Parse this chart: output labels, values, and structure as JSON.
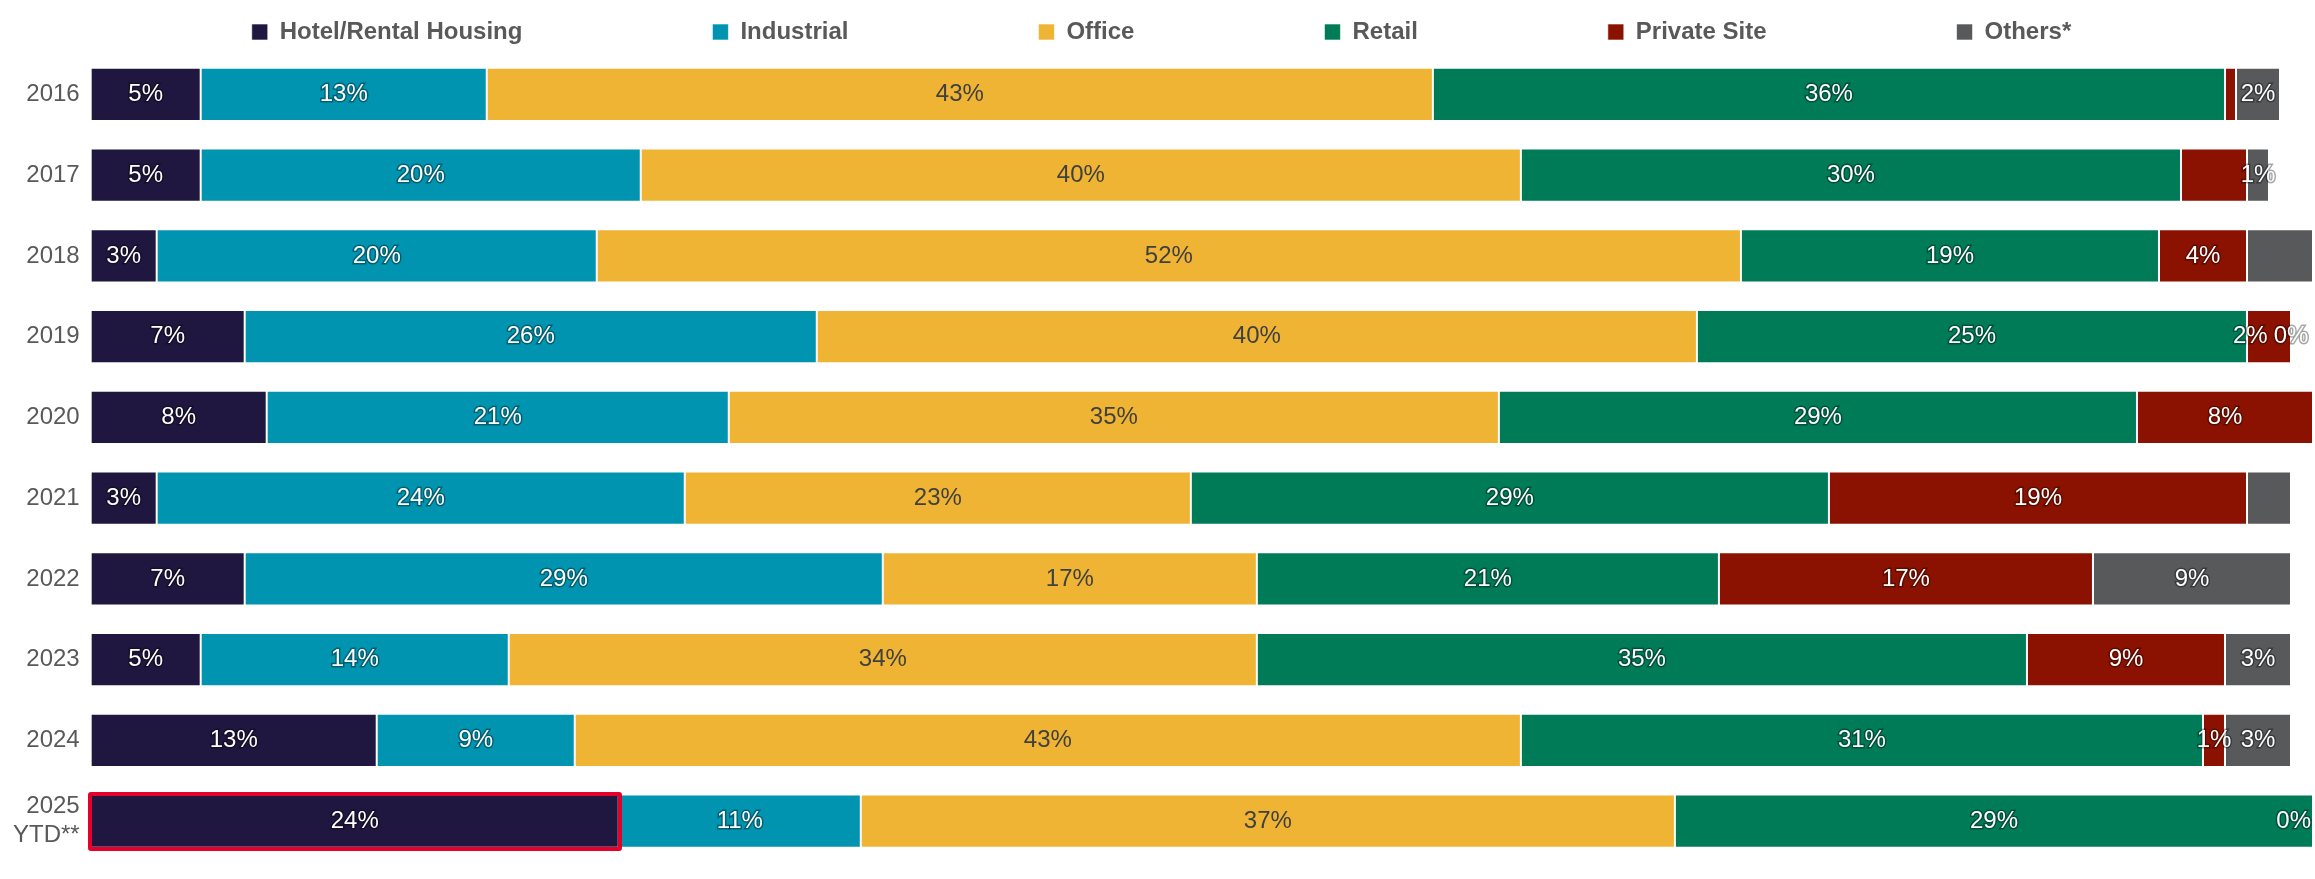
{
  "chart_data": {
    "type": "bar",
    "orientation": "horizontal",
    "stacked": true,
    "legend": "top",
    "categories": [
      "2016",
      "2017",
      "2018",
      "2019",
      "2020",
      "2021",
      "2022",
      "2023",
      "2024",
      "2025 YTD**"
    ],
    "series": [
      {
        "name": "Hotel/Rental Housing",
        "color": "#1f173f",
        "values": [
          5,
          5,
          3,
          7,
          8,
          3,
          7,
          5,
          13,
          24
        ],
        "value_labels": [
          "5%",
          "5%",
          "3%",
          "7%",
          "8%",
          "3%",
          "7%",
          "5%",
          "13%",
          "24%"
        ]
      },
      {
        "name": "Industrial",
        "color": "#0094b0",
        "values": [
          13,
          20,
          20,
          26,
          21,
          24,
          29,
          14,
          9,
          11
        ],
        "value_labels": [
          "13%",
          "20%",
          "20%",
          "26%",
          "21%",
          "24%",
          "29%",
          "14%",
          "9%",
          "11%"
        ]
      },
      {
        "name": "Office",
        "color": "#f0b434",
        "values": [
          43,
          40,
          52,
          40,
          35,
          23,
          17,
          34,
          43,
          37
        ],
        "value_labels": [
          "43%",
          "40%",
          "52%",
          "40%",
          "35%",
          "23%",
          "17%",
          "34%",
          "43%",
          "37%"
        ]
      },
      {
        "name": "Retail",
        "color": "#007b58",
        "values": [
          36,
          30,
          19,
          25,
          29,
          29,
          21,
          35,
          31,
          29
        ],
        "value_labels": [
          "36%",
          "30%",
          "19%",
          "25%",
          "29%",
          "29%",
          "21%",
          "35%",
          "31%",
          "29%"
        ]
      },
      {
        "name": "Private Site",
        "color": "#8b1200",
        "values": [
          0.5,
          3,
          4,
          2,
          8,
          19,
          17,
          9,
          1,
          0
        ],
        "value_labels": [
          null,
          null,
          "4%",
          "2%",
          "8%",
          "19%",
          "17%",
          "9%",
          "1%",
          null
        ]
      },
      {
        "name": "Others*",
        "color": "#58595b",
        "values": [
          2,
          1,
          3,
          0,
          0,
          2,
          9,
          3,
          3,
          0
        ],
        "value_labels": [
          "2%",
          "1%",
          null,
          "0%",
          null,
          null,
          "9%",
          "3%",
          "3%",
          "0%"
        ]
      }
    ]
  }
}
